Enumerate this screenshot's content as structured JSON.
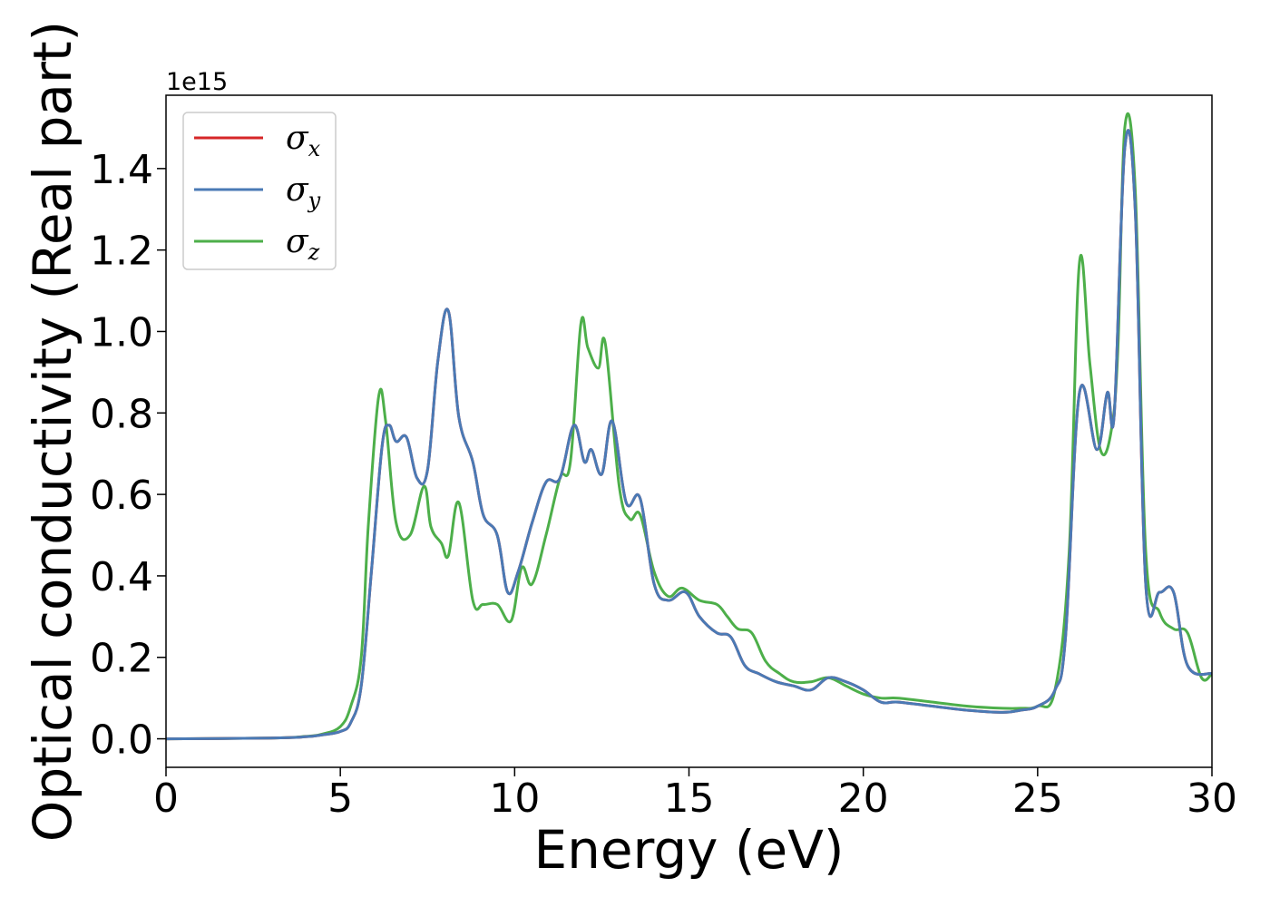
{
  "chart_data": {
    "type": "line",
    "xlabel": "Energy (eV)",
    "ylabel": "Optical conductivity (Real part)",
    "y_offset_label": "1e15",
    "xlim": [
      0,
      30
    ],
    "ylim": [
      -0.07,
      1.58
    ],
    "x_ticks": [
      0,
      5,
      10,
      15,
      20,
      25,
      30
    ],
    "x_tick_labels": [
      "0",
      "5",
      "10",
      "15",
      "20",
      "25",
      "30"
    ],
    "y_ticks": [
      0.0,
      0.2,
      0.4,
      0.6,
      0.8,
      1.0,
      1.2,
      1.4
    ],
    "y_tick_labels": [
      "0.0",
      "0.2",
      "0.4",
      "0.6",
      "0.8",
      "1.0",
      "1.2",
      "1.4"
    ],
    "grid": false,
    "legend_position": "top-left",
    "series": [
      {
        "name": "σx",
        "symbol": "σ",
        "subscript": "x",
        "color": "#d62728",
        "x": [
          0,
          3,
          4,
          4.5,
          5,
          5.3,
          5.6,
          5.9,
          6.2,
          6.4,
          6.6,
          6.9,
          7.2,
          7.5,
          7.8,
          8.1,
          8.4,
          8.8,
          9.1,
          9.5,
          9.8,
          10.1,
          10.5,
          10.9,
          11.3,
          11.7,
          12.0,
          12.2,
          12.5,
          12.8,
          13.2,
          13.6,
          14.0,
          14.4,
          14.9,
          15.3,
          15.8,
          16.2,
          16.6,
          17.0,
          17.5,
          18.0,
          18.5,
          19.0,
          19.5,
          20.0,
          20.5,
          21.0,
          22.0,
          23.0,
          24.0,
          24.5,
          25.0,
          25.5,
          25.8,
          26.2,
          26.7,
          27.0,
          27.2,
          27.5,
          27.8,
          28.1,
          28.5,
          28.9,
          29.3,
          30.0
        ],
        "values": [
          0.0,
          0.002,
          0.005,
          0.01,
          0.018,
          0.04,
          0.13,
          0.42,
          0.72,
          0.77,
          0.73,
          0.74,
          0.64,
          0.66,
          0.93,
          1.05,
          0.79,
          0.68,
          0.55,
          0.5,
          0.36,
          0.41,
          0.53,
          0.63,
          0.64,
          0.77,
          0.68,
          0.71,
          0.65,
          0.78,
          0.58,
          0.59,
          0.38,
          0.34,
          0.36,
          0.3,
          0.26,
          0.25,
          0.18,
          0.16,
          0.14,
          0.13,
          0.12,
          0.15,
          0.14,
          0.12,
          0.09,
          0.09,
          0.08,
          0.07,
          0.065,
          0.07,
          0.08,
          0.12,
          0.25,
          0.85,
          0.71,
          0.85,
          0.8,
          1.45,
          1.3,
          0.38,
          0.36,
          0.36,
          0.18,
          0.16
        ]
      },
      {
        "name": "σy",
        "symbol": "σ",
        "subscript": "y",
        "color": "#4a7ab5",
        "x": [
          0,
          3,
          4,
          4.5,
          5,
          5.3,
          5.6,
          5.9,
          6.2,
          6.4,
          6.6,
          6.9,
          7.2,
          7.5,
          7.8,
          8.1,
          8.4,
          8.8,
          9.1,
          9.5,
          9.8,
          10.1,
          10.5,
          10.9,
          11.3,
          11.7,
          12.0,
          12.2,
          12.5,
          12.8,
          13.2,
          13.6,
          14.0,
          14.4,
          14.9,
          15.3,
          15.8,
          16.2,
          16.6,
          17.0,
          17.5,
          18.0,
          18.5,
          19.0,
          19.5,
          20.0,
          20.5,
          21.0,
          22.0,
          23.0,
          24.0,
          24.5,
          25.0,
          25.5,
          25.8,
          26.2,
          26.7,
          27.0,
          27.2,
          27.5,
          27.8,
          28.1,
          28.5,
          28.9,
          29.3,
          30.0
        ],
        "values": [
          0.0,
          0.002,
          0.005,
          0.01,
          0.018,
          0.04,
          0.13,
          0.42,
          0.72,
          0.77,
          0.73,
          0.74,
          0.64,
          0.66,
          0.93,
          1.05,
          0.79,
          0.68,
          0.55,
          0.5,
          0.36,
          0.41,
          0.53,
          0.63,
          0.64,
          0.77,
          0.68,
          0.71,
          0.65,
          0.78,
          0.58,
          0.59,
          0.38,
          0.34,
          0.36,
          0.3,
          0.26,
          0.25,
          0.18,
          0.16,
          0.14,
          0.13,
          0.12,
          0.15,
          0.14,
          0.12,
          0.09,
          0.09,
          0.08,
          0.07,
          0.065,
          0.07,
          0.08,
          0.12,
          0.25,
          0.85,
          0.71,
          0.85,
          0.8,
          1.45,
          1.3,
          0.38,
          0.36,
          0.36,
          0.18,
          0.16
        ]
      },
      {
        "name": "σz",
        "symbol": "σ",
        "subscript": "z",
        "color": "#4daf4a",
        "x": [
          0,
          3,
          4,
          4.5,
          5,
          5.3,
          5.6,
          5.8,
          6.1,
          6.3,
          6.6,
          7.0,
          7.4,
          7.6,
          7.9,
          8.1,
          8.4,
          8.8,
          9.1,
          9.5,
          9.9,
          10.2,
          10.5,
          10.9,
          11.3,
          11.6,
          11.9,
          12.1,
          12.4,
          12.6,
          13.0,
          13.3,
          13.6,
          14.0,
          14.4,
          14.8,
          15.3,
          15.8,
          16.1,
          16.4,
          16.8,
          17.2,
          17.6,
          18.0,
          18.5,
          19.0,
          19.5,
          20.0,
          20.5,
          21.0,
          22.0,
          23.0,
          24.0,
          24.5,
          25.0,
          25.5,
          25.9,
          26.2,
          26.5,
          26.8,
          27.1,
          27.3,
          27.5,
          27.8,
          28.1,
          28.5,
          28.9,
          29.3,
          29.7,
          30.0
        ],
        "values": [
          0.0,
          0.002,
          0.006,
          0.012,
          0.03,
          0.08,
          0.2,
          0.52,
          0.84,
          0.78,
          0.53,
          0.5,
          0.62,
          0.52,
          0.48,
          0.45,
          0.58,
          0.34,
          0.33,
          0.33,
          0.29,
          0.42,
          0.38,
          0.5,
          0.64,
          0.68,
          1.02,
          0.96,
          0.91,
          0.97,
          0.62,
          0.54,
          0.55,
          0.41,
          0.35,
          0.37,
          0.34,
          0.33,
          0.3,
          0.27,
          0.26,
          0.19,
          0.16,
          0.14,
          0.14,
          0.15,
          0.13,
          0.11,
          0.1,
          0.1,
          0.09,
          0.08,
          0.075,
          0.075,
          0.08,
          0.12,
          0.45,
          1.17,
          0.92,
          0.71,
          0.75,
          0.95,
          1.5,
          1.35,
          0.46,
          0.31,
          0.27,
          0.26,
          0.15,
          0.16
        ]
      }
    ]
  }
}
